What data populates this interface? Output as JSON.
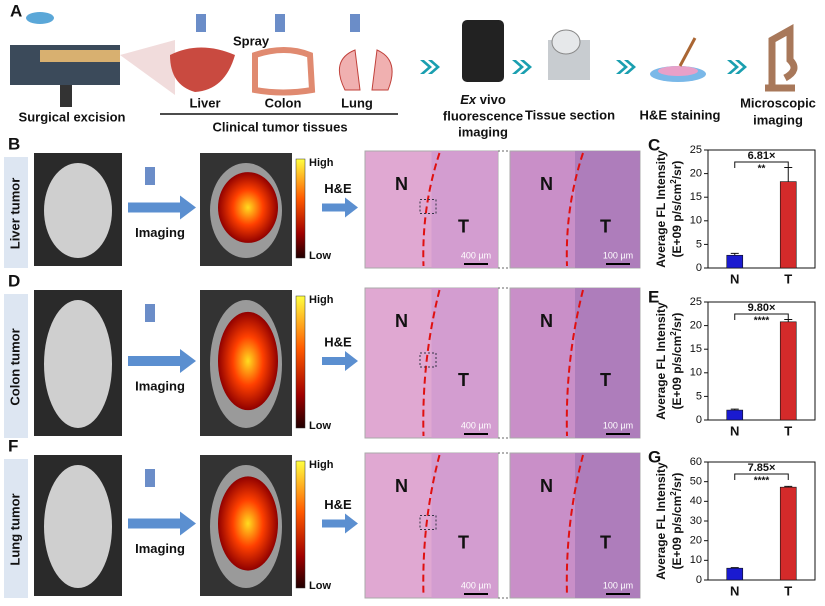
{
  "panel_a": {
    "label": "A",
    "spray": "Spray",
    "surgical": "Surgical excision",
    "organs": [
      "Liver",
      "Colon",
      "Lung"
    ],
    "tissues": "Clinical tumor tissues",
    "exvivo": {
      "italic": "Ex",
      "rest": "vivo",
      "line2": "fluorescence",
      "line3": "imaging"
    },
    "steps": [
      "Tissue section",
      "H&E staining"
    ],
    "micro": [
      "Microscopic",
      "imaging"
    ]
  },
  "rows": [
    {
      "label": "B",
      "tumor": "Liver tumor"
    },
    {
      "label": "D",
      "tumor": "Colon tumor"
    },
    {
      "label": "F",
      "tumor": "Lung tumor"
    }
  ],
  "imaging": "Imaging",
  "high": "High",
  "low": "Low",
  "he": "H&E",
  "normal": "N",
  "tumor_mark": "T",
  "scales": [
    "400 µm",
    "100 µm"
  ],
  "chart_data": [
    {
      "type": "bar",
      "label": "C",
      "y_label": [
        "Average FL Intensity",
        "(E+09 p/s/cm",
        "2",
        "/sr)"
      ],
      "categories": [
        "N",
        "T"
      ],
      "values": [
        2.7,
        18.3
      ],
      "errors": [
        0.4,
        3.0
      ],
      "colors": [
        "#1a1ad0",
        "#d42a2a"
      ],
      "ylim": [
        0,
        25
      ],
      "yticks": [
        0,
        5,
        10,
        15,
        20,
        25
      ],
      "ratio": "6.81×",
      "significance": "**"
    },
    {
      "type": "bar",
      "label": "E",
      "y_label": [
        "Average FL Intensity",
        "(E+09 p/s/cm",
        "2",
        "/sr)"
      ],
      "categories": [
        "N",
        "T"
      ],
      "values": [
        2.1,
        20.8
      ],
      "errors": [
        0.2,
        0.5
      ],
      "colors": [
        "#1a1ad0",
        "#d42a2a"
      ],
      "ylim": [
        0,
        25
      ],
      "yticks": [
        0,
        5,
        10,
        15,
        20,
        25
      ],
      "ratio": "9.80×",
      "significance": "****"
    },
    {
      "type": "bar",
      "label": "G",
      "y_label": [
        "Average FL Intensity",
        "(E+09 p/s/cm",
        "2",
        "/sr)"
      ],
      "categories": [
        "N",
        "T"
      ],
      "values": [
        6.0,
        47.2
      ],
      "errors": [
        0.3,
        0.4
      ],
      "colors": [
        "#1a1ad0",
        "#d42a2a"
      ],
      "ylim": [
        0,
        60
      ],
      "yticks": [
        0,
        10,
        20,
        30,
        40,
        50,
        60
      ],
      "ratio": "7.85×",
      "significance": "****"
    }
  ]
}
